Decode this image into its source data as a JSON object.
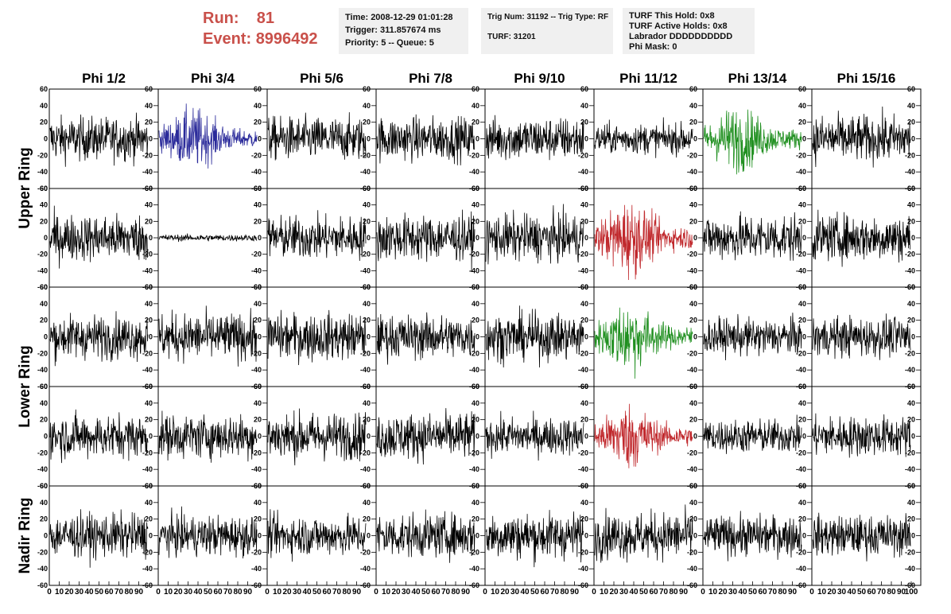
{
  "header": {
    "run_label": "Run:",
    "run_value": "81",
    "event_label": "Event:",
    "event_value": "8996492",
    "time": "Time: 2008-12-29 01:01:28",
    "trigger": "Trigger: 311.857674 ms",
    "priority": "Priority: 5 -- Queue: 5",
    "trig_num": "Trig Num: 31192 -- Trig Type: RF",
    "turf": "TURF: 31201",
    "turf_hold": "TURF This Hold: 0x8",
    "turf_active": "TURF Active Holds: 0x8",
    "labrador": "Labrador DDDDDDDDDD",
    "phi_mask": "Phi Mask: 0"
  },
  "chart_data": {
    "type": "line",
    "columns": [
      "Phi 1/2",
      "Phi 3/4",
      "Phi 5/6",
      "Phi 7/8",
      "Phi 9/10",
      "Phi 11/12",
      "Phi 13/14",
      "Phi 15/16"
    ],
    "ring_labels": [
      {
        "name": "Upper Ring",
        "rows": [
          0,
          1
        ]
      },
      {
        "name": "Lower Ring",
        "rows": [
          2,
          3
        ]
      },
      {
        "name": "Nadir Ring",
        "rows": [
          4
        ]
      }
    ],
    "ylim": [
      -60,
      60
    ],
    "yticks": [
      -60,
      -40,
      -20,
      0,
      20,
      40,
      60
    ],
    "xlim": [
      0,
      100
    ],
    "xticks": [
      0,
      10,
      20,
      30,
      40,
      50,
      60,
      70,
      80,
      90,
      100
    ],
    "colors": {
      "default": "#000000",
      "blue": "#2a2a9a",
      "green": "#1f8f1f",
      "red": "#c0282c"
    },
    "highlighted_cells": [
      {
        "row": 0,
        "col": 1,
        "color": "blue"
      },
      {
        "row": 0,
        "col": 6,
        "color": "green"
      },
      {
        "row": 1,
        "col": 5,
        "color": "red"
      },
      {
        "row": 2,
        "col": 5,
        "color": "green"
      },
      {
        "row": 3,
        "col": 5,
        "color": "red"
      }
    ],
    "amplitude_grid": [
      [
        13,
        12,
        13,
        13,
        13,
        9,
        13,
        14
      ],
      [
        14,
        2,
        13,
        14,
        14,
        15,
        14,
        14
      ],
      [
        13,
        14,
        14,
        13,
        14,
        14,
        11,
        12
      ],
      [
        13,
        13,
        14,
        14,
        11,
        13,
        10,
        12
      ],
      [
        13,
        12,
        12,
        13,
        14,
        14,
        12,
        12
      ]
    ],
    "samples_per_trace": 256
  }
}
